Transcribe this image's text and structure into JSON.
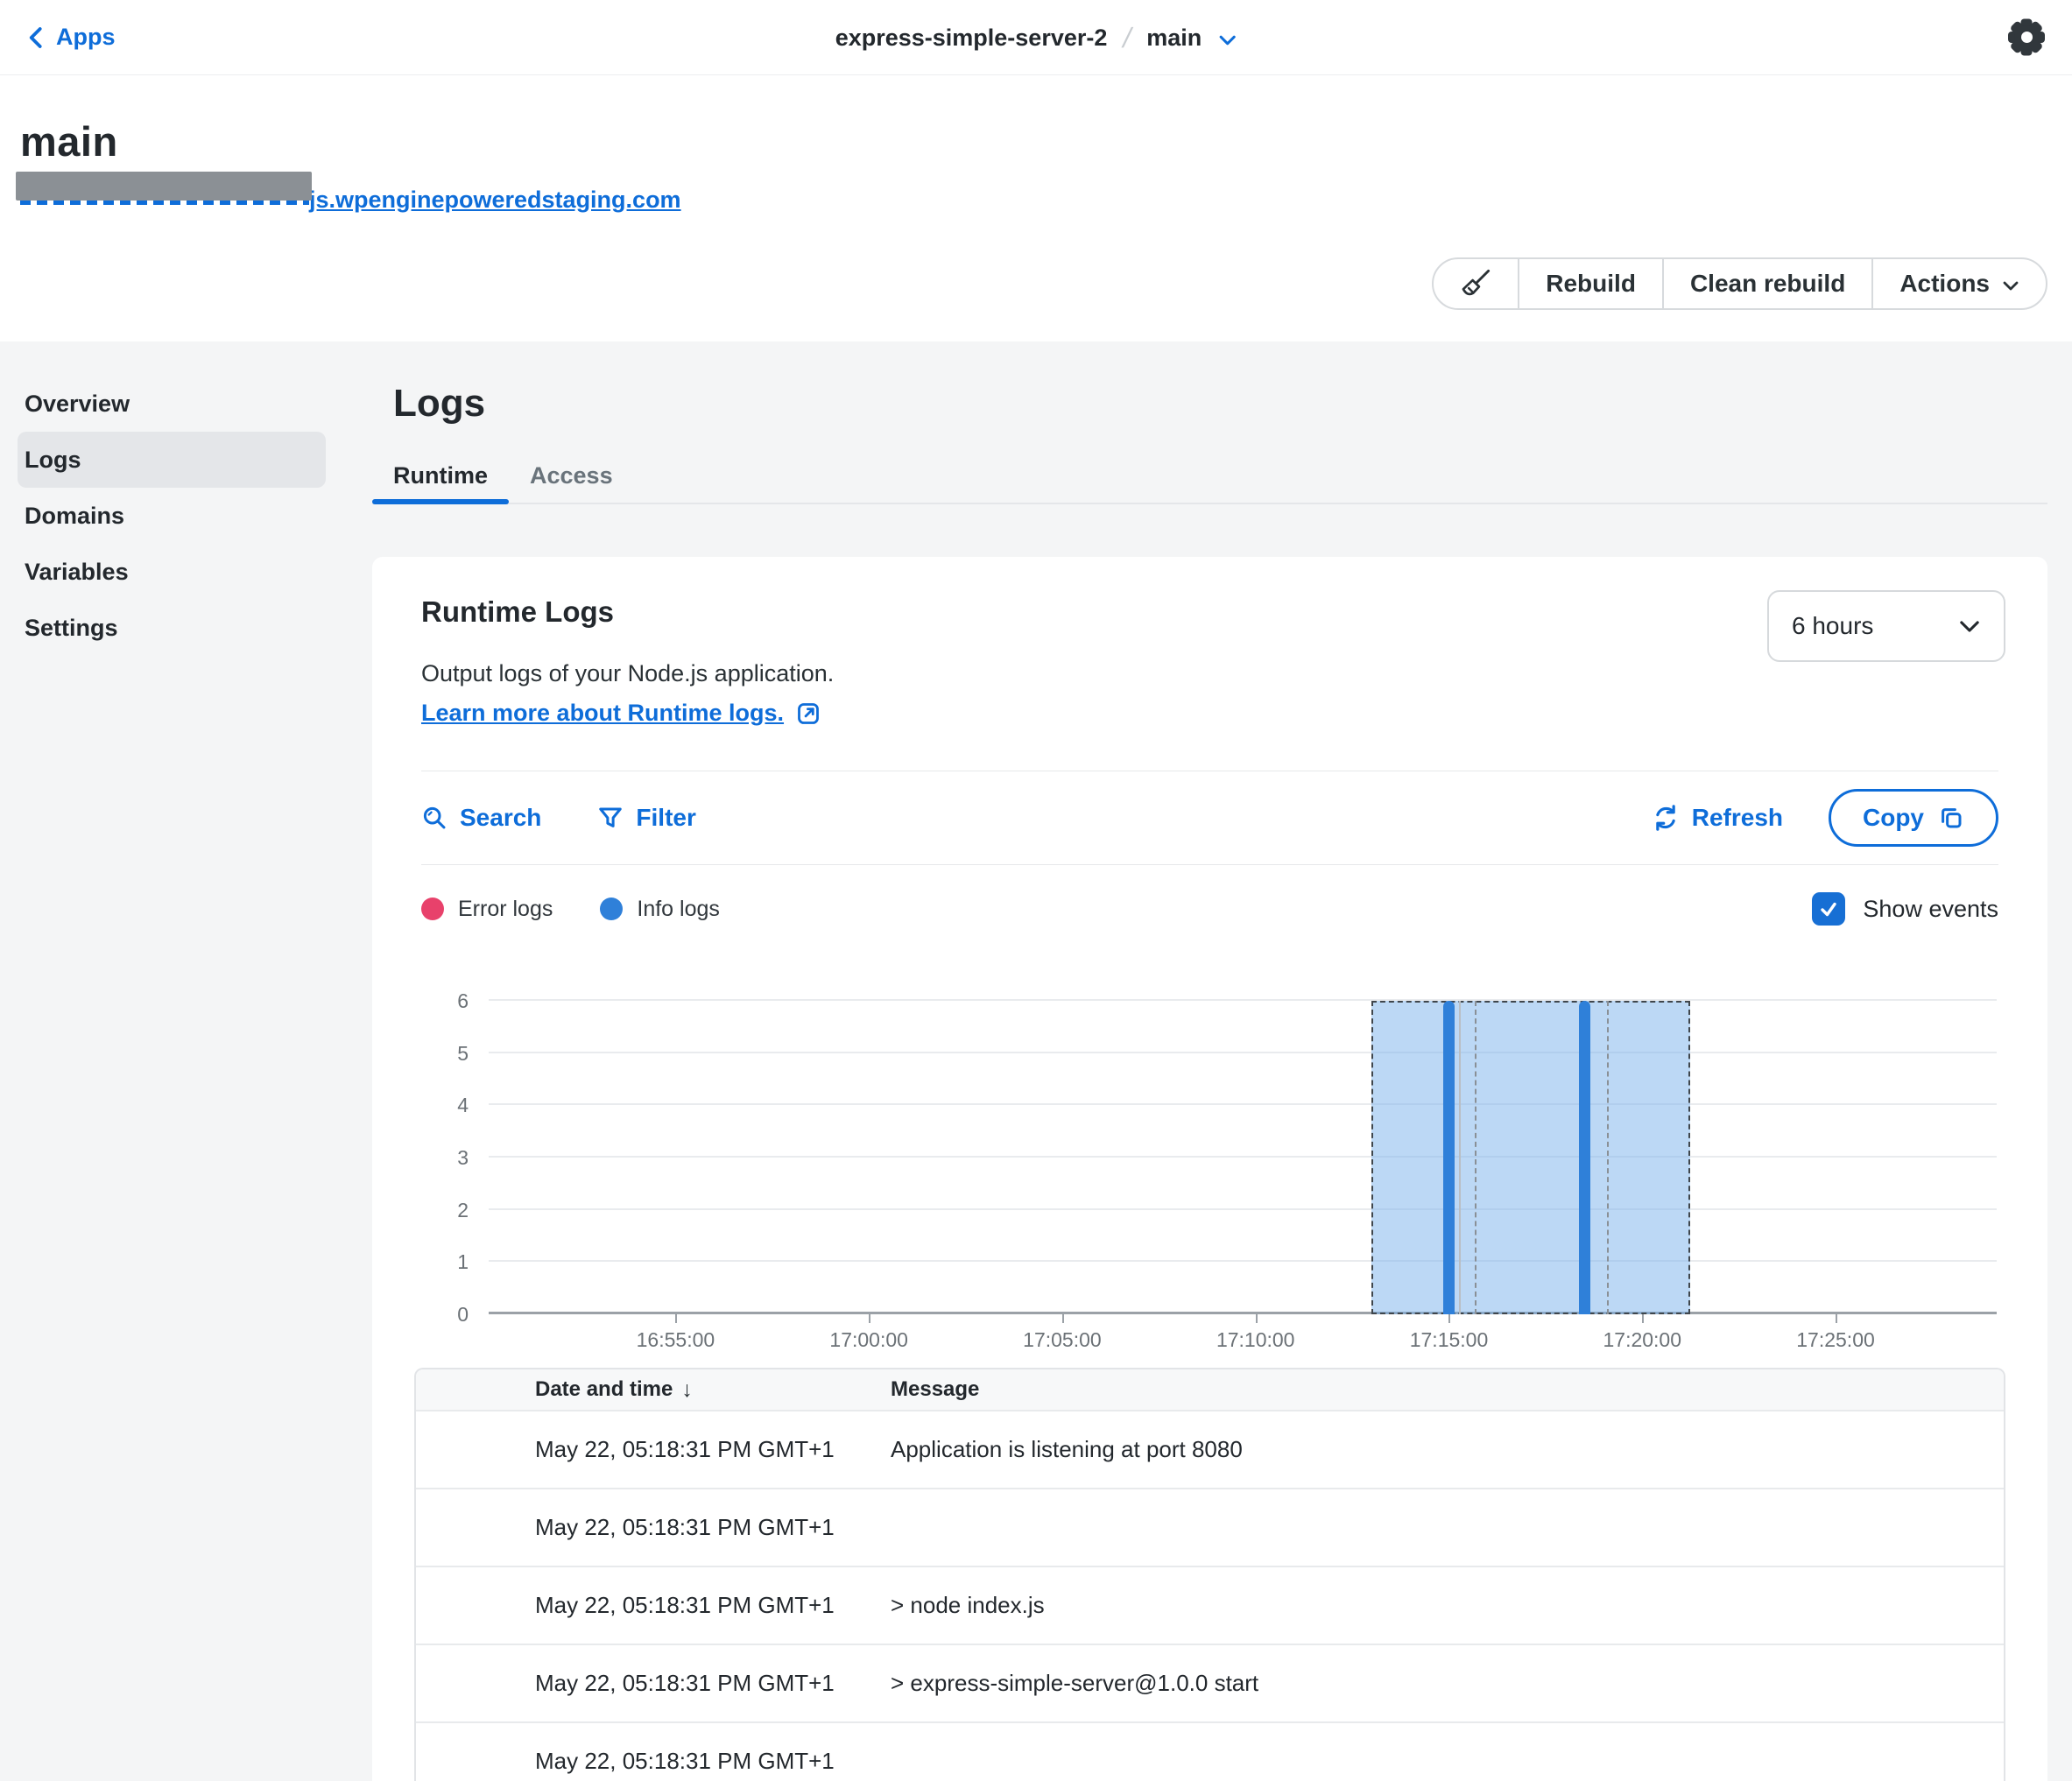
{
  "topbar": {
    "back_label": "Apps",
    "breadcrumb": {
      "app": "express-simple-server-2",
      "separator": "/",
      "env": "main"
    }
  },
  "header": {
    "title": "main",
    "url_visible": "js.wpenginepoweredstaging.com",
    "actions": {
      "rebuild": "Rebuild",
      "clean_rebuild": "Clean rebuild",
      "menu": "Actions"
    }
  },
  "sidebar": {
    "items": [
      {
        "label": "Overview",
        "active": false
      },
      {
        "label": "Logs",
        "active": true
      },
      {
        "label": "Domains",
        "active": false
      },
      {
        "label": "Variables",
        "active": false
      },
      {
        "label": "Settings",
        "active": false
      }
    ]
  },
  "main": {
    "title": "Logs",
    "tabs": [
      {
        "label": "Runtime",
        "active": true
      },
      {
        "label": "Access",
        "active": false
      }
    ]
  },
  "card": {
    "title": "Runtime Logs",
    "time_range": "6 hours",
    "description": "Output logs of your Node.js application.",
    "learn_more": "Learn more about Runtime logs.",
    "toolbar": {
      "search": "Search",
      "filter": "Filter",
      "refresh": "Refresh",
      "copy": "Copy"
    },
    "legend": [
      {
        "label": "Error logs",
        "color": "#e8416b"
      },
      {
        "label": "Info logs",
        "color": "#2f80d9"
      }
    ],
    "show_events": "Show events",
    "show_events_checked": true
  },
  "chart_data": {
    "type": "bar",
    "title": "",
    "xlabel": "",
    "ylabel": "",
    "ylim": [
      0,
      6
    ],
    "yticks": [
      0,
      1,
      2,
      3,
      4,
      5,
      6
    ],
    "grid": true,
    "legend_position": "top-left",
    "x_domain": [
      "16:50:10",
      "17:29:10"
    ],
    "xticks": [
      "16:55:00",
      "17:00:00",
      "17:05:00",
      "17:10:00",
      "17:15:00",
      "17:20:00",
      "17:25:00"
    ],
    "series": [
      {
        "name": "Error logs",
        "color": "#e8416b",
        "points": []
      },
      {
        "name": "Info logs",
        "color": "#2f80d9",
        "points": [
          {
            "x": "17:15:00",
            "y": 6
          },
          {
            "x": "17:18:30",
            "y": 6
          }
        ]
      }
    ],
    "selection_region": {
      "from": "17:13:00",
      "to": "17:21:15",
      "fill": "rgba(121,177,235,0.5)",
      "border": "dashed"
    },
    "event_markers": [
      {
        "x": "17:15:15",
        "style": "solid"
      },
      {
        "x": "17:15:40",
        "style": "dashed"
      },
      {
        "x": "17:19:05",
        "style": "dashed"
      }
    ]
  },
  "table": {
    "columns": [
      "Date and time",
      "Message"
    ],
    "sort_indicator": "↓",
    "rows": [
      {
        "date": "May 22, 05:18:31 PM GMT+1",
        "message": "Application is listening at port 8080"
      },
      {
        "date": "May 22, 05:18:31 PM GMT+1",
        "message": ""
      },
      {
        "date": "May 22, 05:18:31 PM GMT+1",
        "message": "> node index.js"
      },
      {
        "date": "May 22, 05:18:31 PM GMT+1",
        "message": "> express-simple-server@1.0.0 start"
      },
      {
        "date": "May 22, 05:18:31 PM GMT+1",
        "message": ""
      }
    ]
  },
  "colors": {
    "accent_blue": "#0e6dd9",
    "error": "#e8416b",
    "info": "#2f80d9",
    "checkbox": "#176fd4",
    "page_bg": "#f4f5f6",
    "selected_nav_bg": "#e4e6e9"
  }
}
